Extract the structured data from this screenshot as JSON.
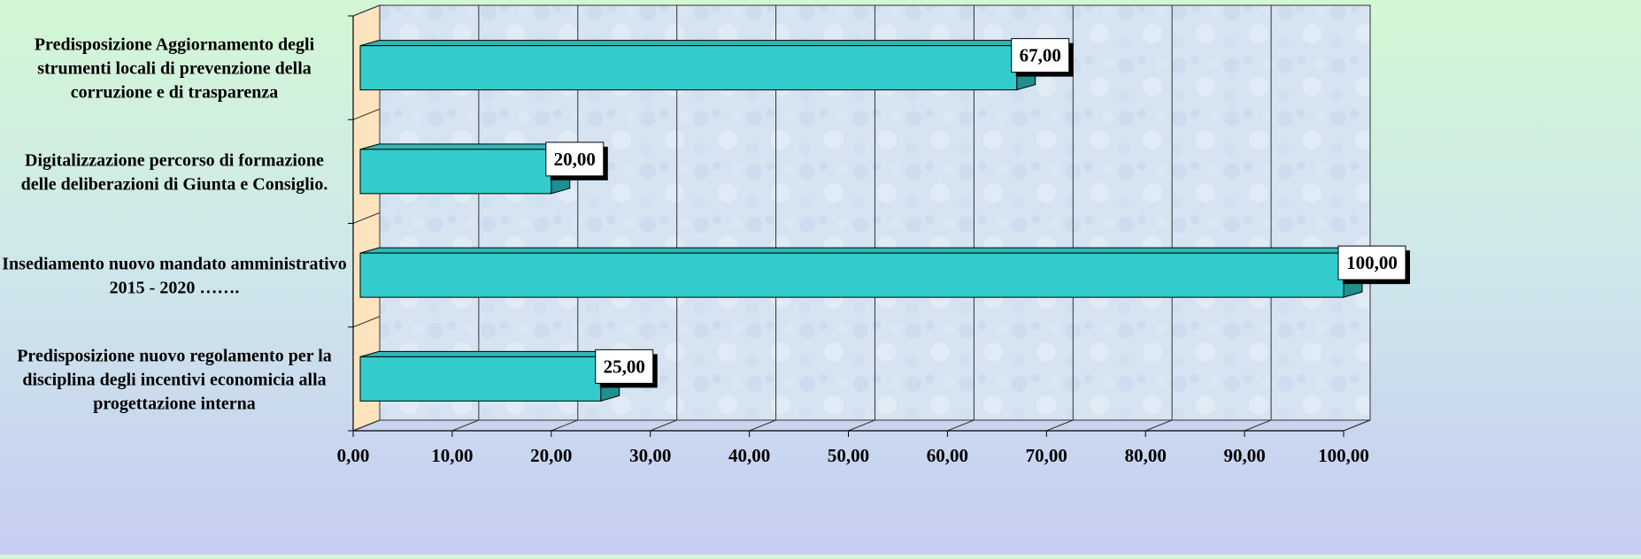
{
  "chart_data": {
    "type": "bar",
    "orientation": "horizontal",
    "categories": [
      [
        "Predisposizione Aggiornamento degli",
        "strumenti locali di prevenzione della",
        "corruzione e di trasparenza"
      ],
      [
        "Digitalizzazione percorso di formazione",
        "delle deliberazioni di Giunta e Consiglio."
      ],
      [
        "Insediamento nuovo mandato amministrativo",
        "2015 - 2020 ……."
      ],
      [
        "Predisposizione nuovo regolamento per la",
        "disciplina degli incentivi economicia alla",
        "progettazione interna"
      ]
    ],
    "values": [
      67,
      20,
      100,
      25
    ],
    "data_labels": [
      "67,00",
      "20,00",
      "100,00",
      "25,00"
    ],
    "xlim": [
      0,
      100
    ],
    "xticks": [
      "0,00",
      "10,00",
      "20,00",
      "30,00",
      "40,00",
      "50,00",
      "60,00",
      "70,00",
      "80,00",
      "90,00",
      "100,00"
    ],
    "grid": true,
    "three_d": true,
    "colors": {
      "bar_front": "#33cccc",
      "bar_top": "#2fb8b8",
      "bar_side": "#1f8f8f",
      "wall": "#d8e6f3",
      "side_wall": "#fde4bf",
      "grid": "#333333",
      "label_box": "#ffffff"
    }
  }
}
